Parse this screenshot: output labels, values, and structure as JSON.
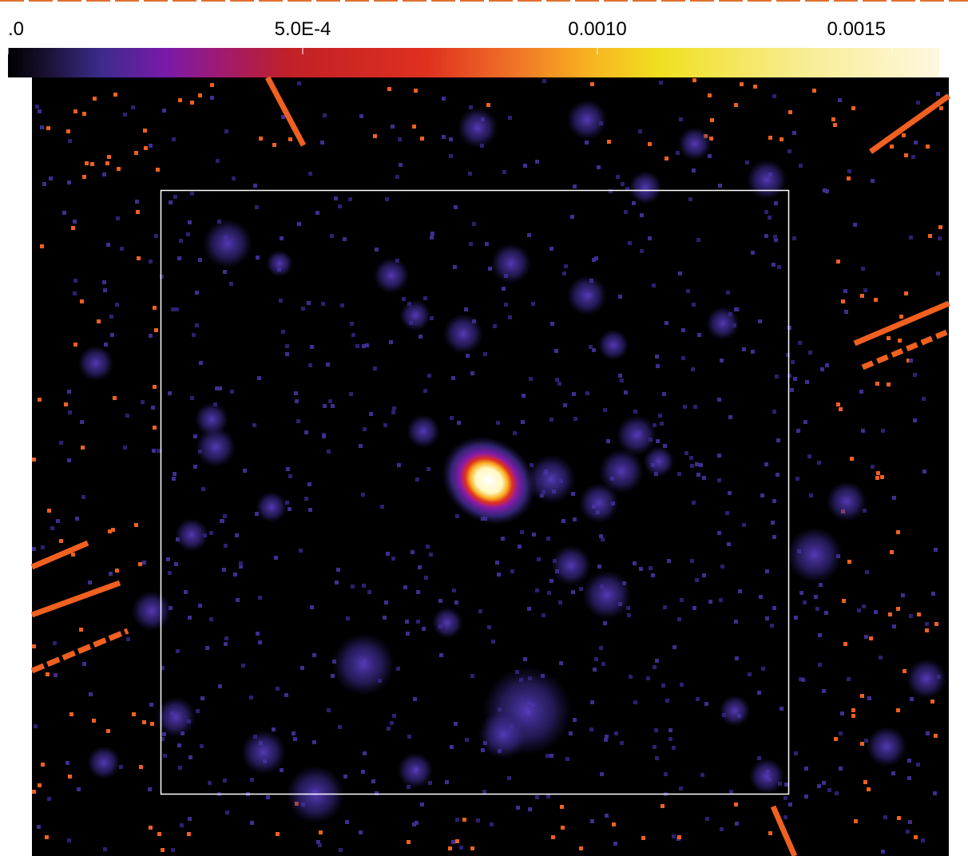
{
  "colorbar": {
    "range": [
      0,
      0.00158
    ],
    "ticks": [
      {
        "value": 0,
        "label": ".0"
      },
      {
        "value": 0.0005,
        "label": "5.0E-4"
      },
      {
        "value": 0.001,
        "label": "0.0010"
      },
      0.0015
    ]
  }
}
